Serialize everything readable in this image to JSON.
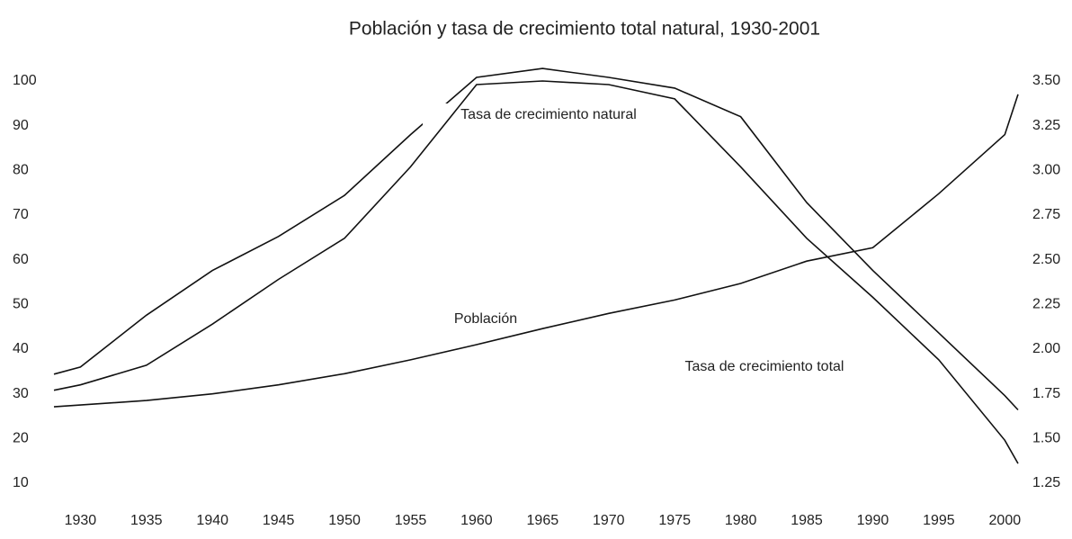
{
  "chart_data": {
    "type": "line",
    "title": "Población y tasa de crecimiento total natural, 1930-2001",
    "x": [
      1928,
      1930,
      1935,
      1940,
      1945,
      1950,
      1955,
      1960,
      1965,
      1970,
      1975,
      1980,
      1985,
      1990,
      1995,
      2000,
      2001
    ],
    "series": [
      {
        "name": "Población",
        "color": "#111111",
        "values": [
          27.1,
          27.5,
          28.5,
          30,
          32,
          34.5,
          37.6,
          41,
          44.6,
          48,
          51,
          54.7,
          59.7,
          62.7,
          74.8,
          88,
          97
        ]
      },
      {
        "name": "Tasa de crecimiento natural",
        "color": "#111111",
        "axis": "y2",
        "values": [
          1.86,
          1.9,
          2.19,
          2.44,
          2.63,
          2.86,
          3.2,
          3.52,
          3.57,
          3.52,
          3.46,
          3.3,
          2.82,
          2.44,
          2.09,
          1.74,
          1.66
        ]
      },
      {
        "name": "Tasa de crecimiento total",
        "color": "#111111",
        "axis": "y2",
        "values": [
          1.77,
          1.8,
          1.91,
          2.14,
          2.39,
          2.62,
          3.02,
          3.48,
          3.5,
          3.48,
          3.4,
          3.02,
          2.62,
          2.29,
          1.94,
          1.49,
          1.36
        ]
      }
    ],
    "xlim": [
      1928,
      2001
    ],
    "xticks": [
      1930,
      1935,
      1940,
      1945,
      1950,
      1955,
      1960,
      1965,
      1970,
      1975,
      1980,
      1985,
      1990,
      1995,
      2000
    ],
    "ylim": [
      10,
      100
    ],
    "yticks": [
      10,
      20,
      30,
      40,
      50,
      60,
      70,
      80,
      90,
      100
    ],
    "y2lim": [
      1.25,
      3.5
    ],
    "y2ticks": [
      {
        "value": 1.25,
        "label": "1.25"
      },
      {
        "value": 1.5,
        "label": "1.50"
      },
      {
        "value": 1.75,
        "label": "1.75"
      },
      {
        "value": 2,
        "label": "2.00"
      },
      {
        "value": 2.25,
        "label": "2.25"
      },
      {
        "value": 2.5,
        "label": "2.50"
      },
      {
        "value": 2.75,
        "label": "2.75"
      },
      {
        "value": 3,
        "label": "3.00"
      },
      {
        "value": 3.25,
        "label": "3.25"
      },
      {
        "value": 3.5,
        "label": "3.50"
      }
    ],
    "grid": false
  }
}
